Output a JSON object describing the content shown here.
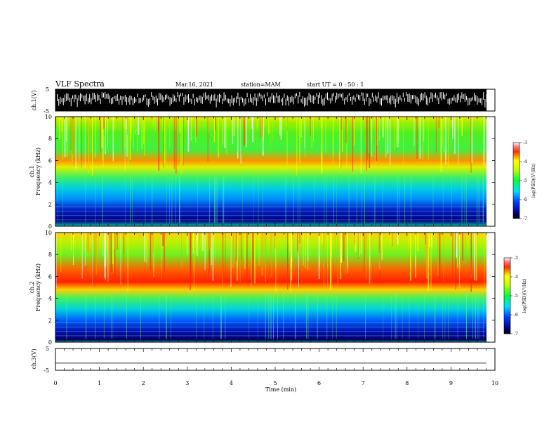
{
  "header": {
    "title": "VLF Spectra",
    "date": "Mar.16, 2021",
    "station": "station=MAM",
    "start": "start UT =  0 : 50 : 1"
  },
  "chart_data": [
    {
      "type": "line",
      "panel": "ch1-waveform",
      "ylabel": "ch.1(V)",
      "ylim": [
        -5,
        5
      ],
      "ytick_labels": [
        "5",
        "-5"
      ],
      "xlim": [
        0,
        10
      ],
      "description_fill": "dense black waveform"
    },
    {
      "type": "heatmap",
      "panel": "ch1-spectrogram",
      "ylabel_top": "ch.1",
      "ylabel": "Frequency (kHz)",
      "ylim": [
        0,
        10
      ],
      "ytick_labels": [
        "0",
        "2",
        "4",
        "6",
        "8",
        "10"
      ],
      "xlim": [
        0,
        10
      ],
      "colorbar": {
        "label": "log(PSD)(V²/Hz)",
        "range": [
          -7,
          -3
        ],
        "tick_labels": [
          "-3",
          "-4",
          "-5",
          "-6",
          "-7"
        ]
      }
    },
    {
      "type": "heatmap",
      "panel": "ch2-spectrogram",
      "ylabel_top": "ch.2",
      "ylabel": "Frequency (kHz)",
      "ylim": [
        0,
        10
      ],
      "ytick_labels": [
        "0",
        "2",
        "4",
        "6",
        "8",
        "10"
      ],
      "xlim": [
        0,
        10
      ],
      "colorbar": {
        "label": "log(PSD)(V²/Hz)",
        "range": [
          -7,
          -3
        ],
        "tick_labels": [
          "-3",
          "-4",
          "-5",
          "-6",
          "-7"
        ]
      }
    },
    {
      "type": "line",
      "panel": "ch3-waveform",
      "ylabel": "ch.3(V)",
      "ylim": [
        -5,
        5
      ],
      "ytick_labels": [
        "5",
        "-5"
      ],
      "xlim": [
        0,
        10
      ],
      "y_value": -1.7,
      "xlabel": "Time (min)",
      "xtick_labels": [
        "0",
        "1",
        "2",
        "3",
        "4",
        "5",
        "6",
        "7",
        "8",
        "9",
        "10"
      ]
    }
  ],
  "colors": {
    "low": "#000080",
    "mid": "#00ff40",
    "high": "#ff0000",
    "waveform": "#000000"
  }
}
